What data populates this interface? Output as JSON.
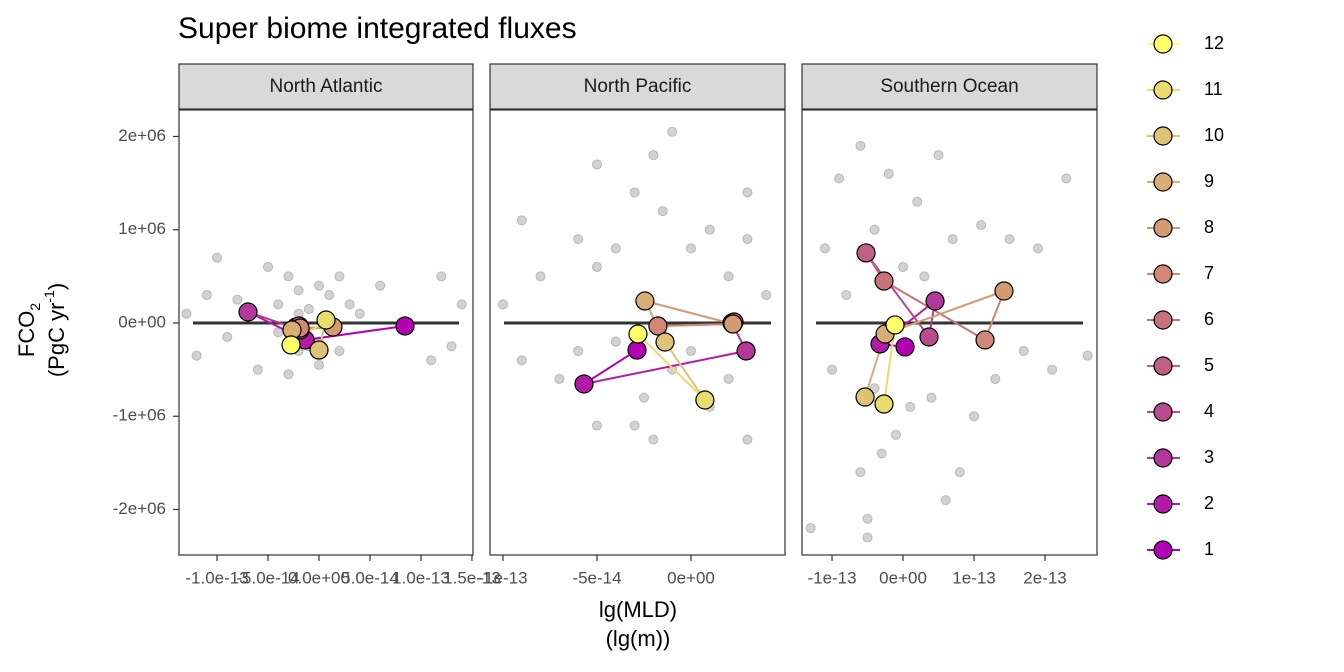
{
  "chart_data": {
    "type": "scatter",
    "title": "Super biome integrated fluxes",
    "x_label": [
      "lg(MLD)",
      "(lg(m))"
    ],
    "y_label": {
      "line1": [
        "FCO",
        "2"
      ],
      "line2": [
        "(PgC yr",
        "-1",
        ")"
      ]
    },
    "ylim": [
      -2488000,
      2284000
    ],
    "yticks": [
      {
        "value": -2000000,
        "label": "-2e+06"
      },
      {
        "value": -1000000,
        "label": "-1e+06"
      },
      {
        "value": 0,
        "label": "0e+00"
      },
      {
        "value": 1000000,
        "label": "1e+06"
      },
      {
        "value": 2000000,
        "label": "2e+06"
      }
    ],
    "hline": 0,
    "legend": [
      {
        "name": "1",
        "color": "#b300b3"
      },
      {
        "name": "2",
        "color": "#b31aa8"
      },
      {
        "name": "3",
        "color": "#b2389b"
      },
      {
        "name": "4",
        "color": "#b64d8f"
      },
      {
        "name": "5",
        "color": "#c06084"
      },
      {
        "name": "6",
        "color": "#c8737c"
      },
      {
        "name": "7",
        "color": "#d08777"
      },
      {
        "name": "8",
        "color": "#d49a72"
      },
      {
        "name": "9",
        "color": "#d8ae74"
      },
      {
        "name": "10",
        "color": "#dcc474"
      },
      {
        "name": "11",
        "color": "#e8dc6c"
      },
      {
        "name": "12",
        "color": "#ffff66"
      }
    ],
    "panels": [
      {
        "title": "North Atlantic",
        "xlim": [
          -1.373e-13,
          1.51e-13
        ],
        "xticks": [
          {
            "value": -1e-13,
            "label": "-1.0e-13"
          },
          {
            "value": -5e-14,
            "label": "-5.0e-14"
          },
          {
            "value": 0,
            "label": "0.0e+00"
          },
          {
            "value": 5e-14,
            "label": "5.0e-14"
          },
          {
            "value": 1e-13,
            "label": "1.0e-13"
          },
          {
            "value": 1.5e-13,
            "label": "1.5e-13"
          }
        ],
        "background": {
          "x": [
            -1.3e-13,
            -1.2e-13,
            -1.1e-13,
            -1e-13,
            -9e-14,
            -8e-14,
            -6e-14,
            -5e-14,
            -4e-14,
            -3e-14,
            -3e-14,
            -2e-14,
            -2e-14,
            -1e-14,
            -1e-14,
            0,
            0,
            1e-14,
            2e-14,
            3e-14,
            4e-14,
            6e-14,
            1.1e-13,
            1.2e-13,
            1.3e-13,
            1.4e-13,
            -4e-14,
            -2e-14,
            0,
            2e-14
          ],
          "y": [
            100000,
            -350000,
            300000,
            700000,
            -150000,
            250000,
            -500000,
            600000,
            200000,
            -550000,
            500000,
            350000,
            -300000,
            150000,
            -250000,
            400000,
            -450000,
            300000,
            -300000,
            200000,
            100000,
            400000,
            -400000,
            500000,
            -250000,
            200000,
            -100000,
            100000,
            -200000,
            500000
          ]
        },
        "months": {
          "x": [
            8.43e-14,
            -1.37e-14,
            -6.96e-14,
            -1.86e-14,
            -2.25e-14,
            -1.96e-14,
            -1.86e-14,
            1.37e-14,
            -2.65e-14,
            0,
            6.9e-15,
            -2.74e-14
          ],
          "y": [
            -32000,
            -182000,
            118000,
            -75000,
            -43000,
            -32000,
            -54000,
            -43000,
            -75000,
            -290000,
            32000,
            -236000
          ]
        }
      },
      {
        "title": "North Pacific",
        "xlim": [
          -1.069e-13,
          5e-14
        ],
        "xticks": [
          {
            "value": -1e-13,
            "label": "-1e-13"
          },
          {
            "value": -5e-14,
            "label": "-5e-14"
          },
          {
            "value": 0,
            "label": "0e+00"
          }
        ],
        "background": {
          "x": [
            -1e-13,
            -9e-14,
            -9e-14,
            -8e-14,
            -7e-14,
            -6e-14,
            -6e-14,
            -5e-14,
            -5e-14,
            -4e-14,
            -4e-14,
            -3e-14,
            -3e-14,
            -2e-14,
            -2e-14,
            -1e-14,
            -1e-14,
            0,
            0,
            1e-14,
            1e-14,
            2e-14,
            2e-14,
            3e-14,
            3e-14,
            4e-14,
            -5e-14,
            -2.5e-14,
            -1.5e-14,
            3e-14
          ],
          "y": [
            200000,
            1100000,
            -400000,
            500000,
            -600000,
            900000,
            -300000,
            1700000,
            -1100000,
            800000,
            -200000,
            1400000,
            -1100000,
            1800000,
            -1250000,
            2050000,
            -500000,
            800000,
            -300000,
            1000000,
            -900000,
            500000,
            -600000,
            1400000,
            -1250000,
            300000,
            600000,
            -800000,
            1200000,
            900000
          ]
        },
        "months": {
          "x": [
            -2.87e-14,
            -5.69e-14,
            2.93e-14,
            2.18e-14,
            2.29e-14,
            2.23e-14,
            -1.76e-14,
            2.23e-14,
            -2.45e-14,
            -1.38e-14,
            7.4e-15,
            -2.82e-14
          ],
          "y": [
            -290000,
            -654000,
            -300000,
            0,
            11000,
            -11000,
            -32000,
            -11000,
            236000,
            -204000,
            -826000,
            -118000
          ]
        }
      },
      {
        "title": "Southern Ocean",
        "xlim": [
          -1.423e-13,
          2.732e-13
        ],
        "xticks": [
          {
            "value": -1e-13,
            "label": "-1e-13"
          },
          {
            "value": 0,
            "label": "0e+00"
          },
          {
            "value": 1e-13,
            "label": "1e-13"
          },
          {
            "value": 2e-13,
            "label": "2e-13"
          }
        ],
        "background": {
          "x": [
            -1.3e-13,
            -1.1e-13,
            -1e-13,
            -9e-14,
            -8e-14,
            -6e-14,
            -6e-14,
            -5e-14,
            -4e-14,
            -3e-14,
            -2e-14,
            -1e-14,
            0,
            1e-14,
            2e-14,
            3e-14,
            4e-14,
            5e-14,
            6e-14,
            7e-14,
            8e-14,
            1e-13,
            1.1e-13,
            1.3e-13,
            1.5e-13,
            1.7e-13,
            1.9e-13,
            2.1e-13,
            2.3e-13,
            2.6e-13,
            -5e-14,
            -4e-14
          ],
          "y": [
            -2200000,
            800000,
            -500000,
            1550000,
            300000,
            -1600000,
            1900000,
            -2300000,
            1000000,
            -1400000,
            1600000,
            -1200000,
            600000,
            -900000,
            1300000,
            500000,
            -800000,
            1800000,
            -1900000,
            900000,
            -1600000,
            -1000000,
            1050000,
            -600000,
            900000,
            -300000,
            800000,
            -500000,
            1550000,
            -350000,
            -2100000,
            -700000
          ]
        },
        "months": {
          "x": [
            2.8e-15,
            -3.24e-14,
            4.51e-14,
            3.66e-14,
            -5.21e-14,
            -2.68e-14,
            1.155e-13,
            1.422e-13,
            -2.53e-14,
            -5.35e-14,
            -2.68e-14,
            -1.13e-14
          ],
          "y": [
            -257000,
            -225000,
            236000,
            -150000,
            751000,
            450000,
            -182000,
            343000,
            -118000,
            -794000,
            -869000,
            -21000
          ]
        }
      }
    ]
  }
}
